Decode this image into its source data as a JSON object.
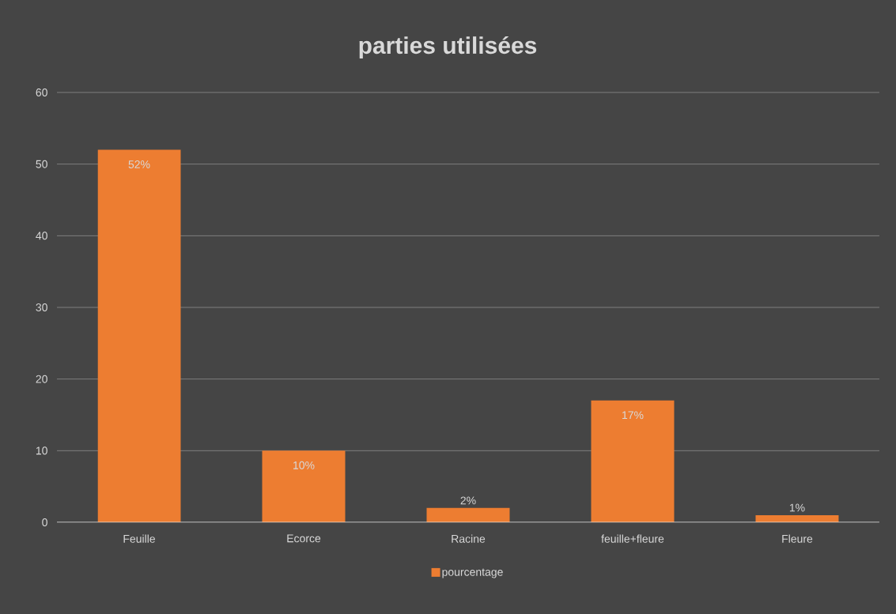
{
  "chart_data": {
    "type": "bar",
    "title": "parties utilisées",
    "categories": [
      "Feuille",
      "Ecorce",
      "Racine",
      "feuille+fleure",
      "Fleure"
    ],
    "series": [
      {
        "name": "pourcentage",
        "color": "#ed7d31",
        "values": [
          52,
          10,
          2,
          17,
          1
        ]
      }
    ],
    "value_labels": [
      "52%",
      "10%",
      "2%",
      "17%",
      "1%"
    ],
    "ylim": [
      0,
      60
    ],
    "yticks": [
      0,
      10,
      20,
      30,
      40,
      50,
      60
    ],
    "grid": "y",
    "legend": "bottom"
  }
}
